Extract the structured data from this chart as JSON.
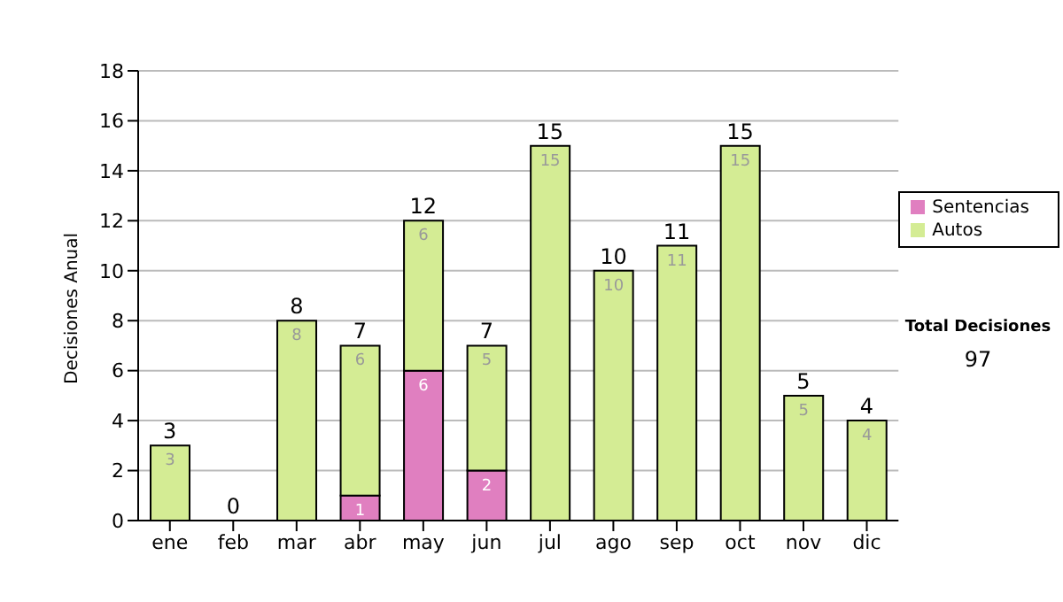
{
  "chart_data": {
    "type": "bar",
    "stacked": true,
    "ylabel": "Decisiones Anual",
    "categories": [
      "ene",
      "feb",
      "mar",
      "abr",
      "may",
      "jun",
      "jul",
      "ago",
      "sep",
      "oct",
      "nov",
      "dic"
    ],
    "series": [
      {
        "name": "Sentencias",
        "color": "#e07fc0",
        "values": [
          0,
          0,
          0,
          1,
          6,
          2,
          0,
          0,
          0,
          0,
          0,
          0
        ],
        "value_labels": [
          null,
          null,
          null,
          "1",
          "6",
          "2",
          null,
          null,
          null,
          null,
          null,
          null
        ]
      },
      {
        "name": "Autos",
        "color": "#d4ec94",
        "values": [
          3,
          0,
          8,
          6,
          6,
          5,
          15,
          10,
          11,
          15,
          5,
          4
        ],
        "value_labels": [
          "3",
          null,
          "8",
          "6",
          "6",
          "5",
          "15",
          "10",
          "11",
          "15",
          "5",
          "4"
        ]
      }
    ],
    "totals": [
      "3",
      "0",
      "8",
      "7",
      "12",
      "7",
      "15",
      "10",
      "11",
      "15",
      "5",
      "4"
    ],
    "ylim": [
      0,
      18
    ],
    "yticks": [
      0,
      2,
      4,
      6,
      8,
      10,
      12,
      14,
      16,
      18
    ],
    "grid": "y",
    "legend": "right",
    "annotations": [
      "Total Decisiones",
      "97"
    ]
  }
}
